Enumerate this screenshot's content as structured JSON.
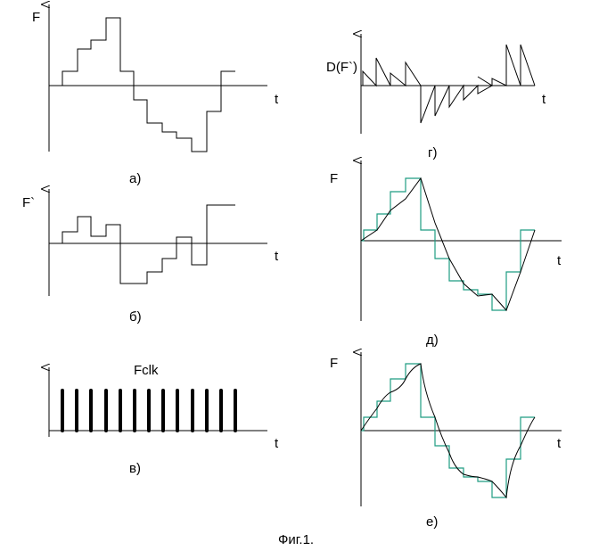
{
  "panels": [
    {
      "y_label": "F",
      "x_label": "t",
      "caption": "а)"
    },
    {
      "y_label": "F`",
      "x_label": "t",
      "caption": "б)"
    },
    {
      "title": "Fclk",
      "x_label": "t",
      "caption": "в)"
    },
    {
      "y_label": "D(F`)",
      "x_label": "t",
      "caption": "г)"
    },
    {
      "y_label": "F",
      "x_label": "t",
      "caption": "д)"
    },
    {
      "y_label": "F",
      "x_label": "t",
      "caption": "е)"
    }
  ],
  "figure_caption": "Фиг.1."
}
